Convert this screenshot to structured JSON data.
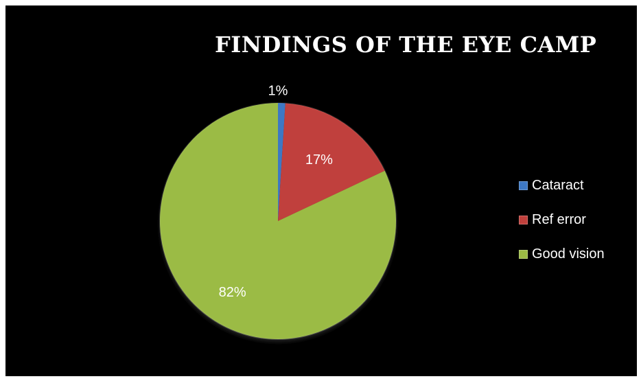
{
  "chart_data": {
    "type": "pie",
    "title": "FINDINGS OF THE EYE CAMP",
    "categories": [
      "Cataract",
      "Ref error",
      "Good vision"
    ],
    "values": [
      1,
      17,
      82
    ],
    "data_labels": [
      "1%",
      "17%",
      "82%"
    ],
    "colors": [
      "#3d78c4",
      "#c0403c",
      "#9bbb44"
    ],
    "legend_position": "right",
    "background": "#000000"
  }
}
